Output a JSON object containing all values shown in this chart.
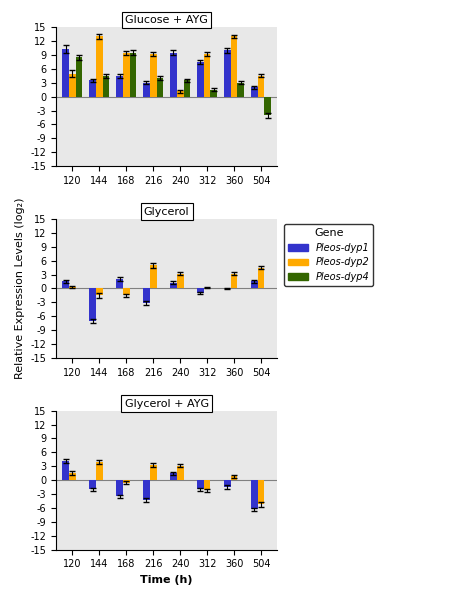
{
  "time_points": [
    120,
    144,
    168,
    216,
    240,
    312,
    360,
    504
  ],
  "panel_titles": [
    "Glucose + AYG",
    "Glycerol",
    "Glycerol + AYG"
  ],
  "gene_colors": [
    "#3333cc",
    "#ffaa00",
    "#336600"
  ],
  "gene_labels": [
    "Pleos-dyp1",
    "Pleos-dyp2",
    "Pleos-dyp4"
  ],
  "ylabel": "Relative Expression Levels (log₂)",
  "xlabel": "Time (h)",
  "ylim": [
    -15,
    15
  ],
  "yticks": [
    -15,
    -12,
    -9,
    -6,
    -3,
    0,
    3,
    6,
    9,
    12,
    15
  ],
  "panel1_dyp1": [
    10.3,
    3.5,
    4.5,
    3.0,
    9.5,
    7.5,
    10.0,
    2.0
  ],
  "panel1_dyp2": [
    5.0,
    13.0,
    9.5,
    9.2,
    1.2,
    9.2,
    13.0,
    4.5
  ],
  "panel1_dyp4": [
    8.5,
    4.5,
    9.5,
    4.0,
    3.5,
    1.5,
    3.0,
    -4.0
  ],
  "panel1_dyp1_err": [
    0.8,
    0.3,
    0.4,
    0.3,
    0.5,
    0.4,
    0.5,
    0.3
  ],
  "panel1_dyp2_err": [
    0.7,
    0.5,
    0.4,
    0.5,
    0.3,
    0.5,
    0.4,
    0.3
  ],
  "panel1_dyp4_err": [
    0.6,
    0.5,
    0.5,
    0.4,
    0.4,
    0.3,
    0.3,
    0.5
  ],
  "panel2_dyp1": [
    1.5,
    -7.0,
    2.0,
    -3.2,
    1.2,
    -1.0,
    0.0,
    1.5
  ],
  "panel2_dyp2": [
    0.3,
    -1.5,
    -1.5,
    5.0,
    3.2,
    0.2,
    3.2,
    4.5
  ],
  "panel2_dyp4": [
    0.0,
    0.0,
    0.0,
    0.0,
    0.0,
    0.0,
    0.0,
    0.0
  ],
  "panel2_dyp1_err": [
    0.3,
    0.5,
    0.4,
    0.4,
    0.3,
    0.3,
    0.2,
    0.3
  ],
  "panel2_dyp2_err": [
    0.3,
    0.5,
    0.4,
    0.5,
    0.4,
    0.2,
    0.4,
    0.4
  ],
  "panel2_dyp4_err": [
    0.0,
    0.0,
    0.0,
    0.0,
    0.0,
    0.0,
    0.0,
    0.0
  ],
  "panel3_dyp1": [
    4.2,
    -2.0,
    -3.5,
    -4.2,
    1.5,
    -2.0,
    -1.5,
    -6.3
  ],
  "panel3_dyp2": [
    1.5,
    4.0,
    -0.5,
    3.3,
    3.1,
    -2.2,
    0.8,
    -5.2
  ],
  "panel3_dyp4": [
    0.0,
    0.0,
    0.0,
    0.0,
    0.0,
    0.0,
    0.0,
    0.0
  ],
  "panel3_dyp1_err": [
    0.4,
    0.4,
    0.4,
    0.4,
    0.3,
    0.3,
    0.4,
    0.4
  ],
  "panel3_dyp2_err": [
    0.4,
    0.4,
    0.3,
    0.4,
    0.3,
    0.4,
    0.3,
    0.5
  ],
  "panel3_dyp4_err": [
    0.0,
    0.0,
    0.0,
    0.0,
    0.0,
    0.0,
    0.0,
    0.0
  ],
  "background_color": "#e8e8e8",
  "legend_title": "Gene",
  "bar_width": 0.25,
  "legend_fontsize": 8,
  "tick_fontsize": 7,
  "label_fontsize": 8,
  "title_fontsize": 8
}
